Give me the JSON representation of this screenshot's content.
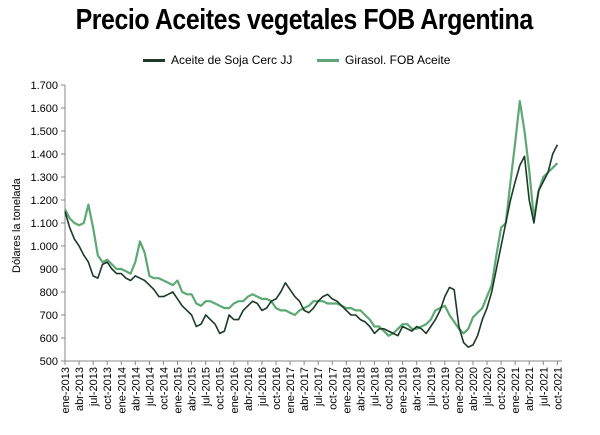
{
  "chart_data": {
    "type": "line",
    "title": "Precio Aceites vegetales FOB Argentina",
    "ylabel": "Dólares la tonelada",
    "xlabel": "",
    "ylim": [
      500,
      1700
    ],
    "yticks": [
      "500",
      "600",
      "700",
      "800",
      "900",
      "1.000",
      "1.100",
      "1.200",
      "1.300",
      "1.400",
      "1.500",
      "1.600",
      "1.700"
    ],
    "ytick_values": [
      500,
      600,
      700,
      800,
      900,
      1000,
      1100,
      1200,
      1300,
      1400,
      1500,
      1600,
      1700
    ],
    "xticks": [
      "ene-2013",
      "abr-2013",
      "jul-2013",
      "oct-2013",
      "ene-2014",
      "abr-2014",
      "jul-2014",
      "oct-2014",
      "ene-2015",
      "abr-2015",
      "jul-2015",
      "oct-2015",
      "ene-2016",
      "abr-2016",
      "jul-2016",
      "oct-2016",
      "ene-2017",
      "abr-2017",
      "jul-2017",
      "oct-2017",
      "ene-2018",
      "abr-2018",
      "jul-2018",
      "oct-2018",
      "ene-2019",
      "abr-2019",
      "jul-2019",
      "oct-2019",
      "ene-2020",
      "abr-2020",
      "jul-2020",
      "oct-2020",
      "ene-2021",
      "abr-2021",
      "jul-2021",
      "oct-2021"
    ],
    "legend_position": "top",
    "grid": false,
    "series": [
      {
        "name": "Aceite de Soja Cerc JJ",
        "color": "#1b3a28",
        "x": [
          "ene-2013",
          "feb-2013",
          "mar-2013",
          "abr-2013",
          "may-2013",
          "jun-2013",
          "jul-2013",
          "ago-2013",
          "sep-2013",
          "oct-2013",
          "nov-2013",
          "dic-2013",
          "ene-2014",
          "feb-2014",
          "mar-2014",
          "abr-2014",
          "may-2014",
          "jun-2014",
          "jul-2014",
          "ago-2014",
          "sep-2014",
          "oct-2014",
          "nov-2014",
          "dic-2014",
          "ene-2015",
          "feb-2015",
          "mar-2015",
          "abr-2015",
          "may-2015",
          "jun-2015",
          "jul-2015",
          "ago-2015",
          "sep-2015",
          "oct-2015",
          "nov-2015",
          "dic-2015",
          "ene-2016",
          "feb-2016",
          "mar-2016",
          "abr-2016",
          "may-2016",
          "jun-2016",
          "jul-2016",
          "ago-2016",
          "sep-2016",
          "oct-2016",
          "nov-2016",
          "dic-2016",
          "ene-2017",
          "feb-2017",
          "mar-2017",
          "abr-2017",
          "may-2017",
          "jun-2017",
          "jul-2017",
          "ago-2017",
          "sep-2017",
          "oct-2017",
          "nov-2017",
          "dic-2017",
          "ene-2018",
          "feb-2018",
          "mar-2018",
          "abr-2018",
          "may-2018",
          "jun-2018",
          "jul-2018",
          "ago-2018",
          "sep-2018",
          "oct-2018",
          "nov-2018",
          "dic-2018",
          "ene-2019",
          "feb-2019",
          "mar-2019",
          "abr-2019",
          "may-2019",
          "jun-2019",
          "jul-2019",
          "ago-2019",
          "sep-2019",
          "oct-2019",
          "nov-2019",
          "dic-2019",
          "ene-2020",
          "feb-2020",
          "mar-2020",
          "abr-2020",
          "may-2020",
          "jun-2020",
          "jul-2020",
          "ago-2020",
          "sep-2020",
          "oct-2020",
          "nov-2020",
          "dic-2020",
          "ene-2021",
          "feb-2021",
          "mar-2021",
          "abr-2021",
          "may-2021",
          "jun-2021",
          "jul-2021",
          "ago-2021",
          "sep-2021",
          "oct-2021"
        ],
        "values": [
          1150,
          1080,
          1030,
          1000,
          960,
          930,
          870,
          860,
          920,
          930,
          900,
          880,
          880,
          860,
          850,
          870,
          860,
          850,
          830,
          810,
          780,
          780,
          790,
          800,
          770,
          740,
          720,
          700,
          650,
          660,
          700,
          680,
          660,
          620,
          630,
          700,
          680,
          680,
          720,
          740,
          760,
          750,
          720,
          730,
          760,
          770,
          800,
          840,
          810,
          780,
          760,
          720,
          710,
          730,
          760,
          780,
          790,
          770,
          760,
          740,
          720,
          700,
          700,
          680,
          670,
          650,
          620,
          640,
          640,
          630,
          620,
          610,
          650,
          640,
          630,
          650,
          640,
          620,
          650,
          680,
          720,
          780,
          820,
          810,
          650,
          580,
          560,
          570,
          610,
          680,
          730,
          800,
          900,
          1000,
          1100,
          1200,
          1280,
          1350,
          1390,
          1200,
          1100,
          1240,
          1280,
          1320,
          1400,
          1440
        ]
      },
      {
        "name": "Girasol. FOB Aceite",
        "color": "#5ea874",
        "x": [
          "ene-2013",
          "feb-2013",
          "mar-2013",
          "abr-2013",
          "may-2013",
          "jun-2013",
          "jul-2013",
          "ago-2013",
          "sep-2013",
          "oct-2013",
          "nov-2013",
          "dic-2013",
          "ene-2014",
          "feb-2014",
          "mar-2014",
          "abr-2014",
          "may-2014",
          "jun-2014",
          "jul-2014",
          "ago-2014",
          "sep-2014",
          "oct-2014",
          "nov-2014",
          "dic-2014",
          "ene-2015",
          "feb-2015",
          "mar-2015",
          "abr-2015",
          "may-2015",
          "jun-2015",
          "jul-2015",
          "ago-2015",
          "sep-2015",
          "oct-2015",
          "nov-2015",
          "dic-2015",
          "ene-2016",
          "feb-2016",
          "mar-2016",
          "abr-2016",
          "may-2016",
          "jun-2016",
          "jul-2016",
          "ago-2016",
          "sep-2016",
          "oct-2016",
          "nov-2016",
          "dic-2016",
          "ene-2017",
          "feb-2017",
          "mar-2017",
          "abr-2017",
          "may-2017",
          "jun-2017",
          "jul-2017",
          "ago-2017",
          "sep-2017",
          "oct-2017",
          "nov-2017",
          "dic-2017",
          "ene-2018",
          "feb-2018",
          "mar-2018",
          "abr-2018",
          "may-2018",
          "jun-2018",
          "jul-2018",
          "ago-2018",
          "sep-2018",
          "oct-2018",
          "nov-2018",
          "dic-2018",
          "ene-2019",
          "feb-2019",
          "mar-2019",
          "abr-2019",
          "may-2019",
          "jun-2019",
          "jul-2019",
          "ago-2019",
          "sep-2019",
          "oct-2019",
          "nov-2019",
          "dic-2019",
          "ene-2020",
          "feb-2020",
          "mar-2020",
          "abr-2020",
          "may-2020",
          "jun-2020",
          "jul-2020",
          "ago-2020",
          "sep-2020",
          "oct-2020",
          "nov-2020",
          "dic-2020",
          "ene-2021",
          "feb-2021",
          "mar-2021",
          "abr-2021",
          "may-2021",
          "jun-2021",
          "jul-2021",
          "ago-2021",
          "sep-2021",
          "oct-2021"
        ],
        "values": [
          1160,
          1120,
          1100,
          1090,
          1100,
          1180,
          1080,
          960,
          930,
          940,
          920,
          900,
          900,
          890,
          880,
          930,
          1020,
          970,
          870,
          860,
          860,
          850,
          840,
          830,
          850,
          800,
          790,
          790,
          750,
          740,
          760,
          760,
          750,
          740,
          730,
          730,
          750,
          760,
          760,
          780,
          790,
          780,
          770,
          770,
          760,
          730,
          720,
          720,
          710,
          700,
          720,
          730,
          740,
          760,
          760,
          760,
          750,
          750,
          750,
          740,
          730,
          730,
          720,
          720,
          700,
          680,
          650,
          650,
          630,
          610,
          620,
          640,
          660,
          660,
          640,
          640,
          650,
          660,
          680,
          720,
          730,
          740,
          700,
          670,
          640,
          620,
          640,
          690,
          710,
          730,
          780,
          830,
          960,
          1080,
          1100,
          1280,
          1450,
          1630,
          1500,
          1330,
          1120,
          1240,
          1300,
          1320,
          1340,
          1360
        ]
      }
    ]
  }
}
